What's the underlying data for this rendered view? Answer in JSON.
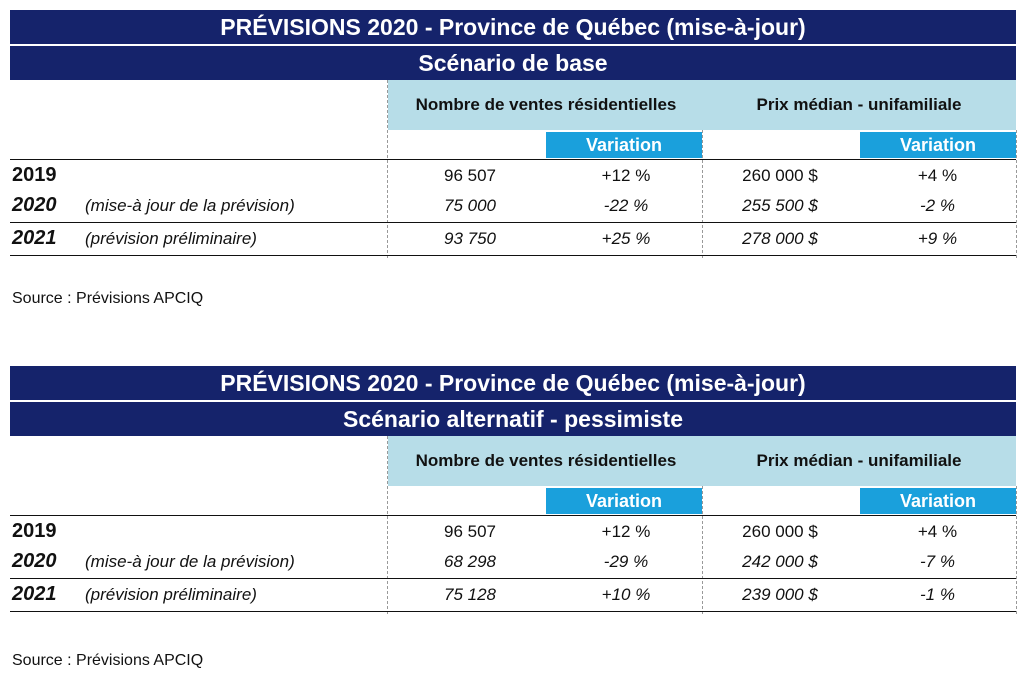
{
  "tables": [
    {
      "title": "PRÉVISIONS 2020 - Province de Québec (mise-à-jour)",
      "scenario": "Scénario de base",
      "col_sales": "Nombre de ventes résidentielles",
      "col_price": "Prix médian - unifamiliale",
      "variation": "Variation",
      "rows": [
        {
          "year": "2019",
          "note": "",
          "sales": "96 507",
          "sales_var": "+12 %",
          "price": "260 000 $",
          "price_var": "+4 %"
        },
        {
          "year": "2020",
          "note": "(mise-à jour de la prévision)",
          "sales": "75 000",
          "sales_var": "-22 %",
          "price": "255 500 $",
          "price_var": "-2 %"
        },
        {
          "year": "2021",
          "note": "(prévision préliminaire)",
          "sales": "93 750",
          "sales_var": "+25 %",
          "price": "278 000 $",
          "price_var": "+9 %"
        }
      ],
      "source": "Source : Prévisions APCIQ"
    },
    {
      "title": "PRÉVISIONS 2020 - Province de Québec (mise-à-jour)",
      "scenario": "Scénario alternatif - pessimiste",
      "col_sales": "Nombre de ventes résidentielles",
      "col_price": "Prix médian - unifamiliale",
      "variation": "Variation",
      "rows": [
        {
          "year": "2019",
          "note": "",
          "sales": "96 507",
          "sales_var": "+12 %",
          "price": "260 000 $",
          "price_var": "+4 %"
        },
        {
          "year": "2020",
          "note": "(mise-à jour de la prévision)",
          "sales": "68 298",
          "sales_var": "-29 %",
          "price": "242 000 $",
          "price_var": "-7 %"
        },
        {
          "year": "2021",
          "note": "(prévision préliminaire)",
          "sales": "75 128",
          "sales_var": "+10 %",
          "price": "239 000 $",
          "price_var": "-1 %"
        }
      ],
      "source": "Source : Prévisions APCIQ"
    }
  ]
}
